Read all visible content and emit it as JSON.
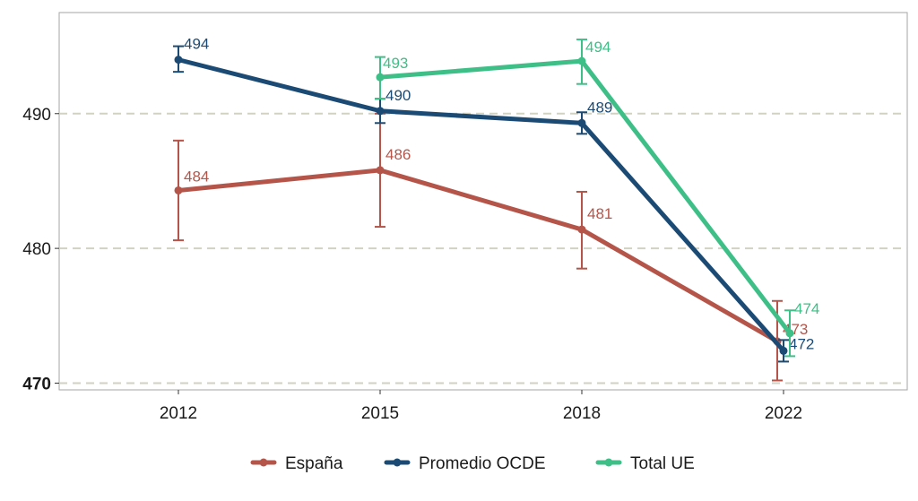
{
  "chart_data": {
    "type": "line",
    "x": [
      "2012",
      "2015",
      "2018",
      "2022"
    ],
    "ylim": [
      469.5,
      497.5
    ],
    "y_ticks": [
      {
        "value": 470,
        "label": "470",
        "bold": true
      },
      {
        "value": 480,
        "label": "480",
        "bold": false
      },
      {
        "value": 490,
        "label": "490",
        "bold": false
      }
    ],
    "grid": "horizontal dashed",
    "legend_position": "bottom",
    "series": [
      {
        "name": "España",
        "color": "#b5554a",
        "points": [
          {
            "x": "2012",
            "y": 484.3,
            "err_low": 480.6,
            "err_high": 488.0,
            "label": "484"
          },
          {
            "x": "2015",
            "y": 485.8,
            "err_low": 481.6,
            "err_high": 490.0,
            "label": "486"
          },
          {
            "x": "2018",
            "y": 481.4,
            "err_low": 478.5,
            "err_high": 484.2,
            "label": "481"
          },
          {
            "x": "2022",
            "y": 473.1,
            "err_low": 470.2,
            "err_high": 476.1,
            "label": "473"
          }
        ]
      },
      {
        "name": "Promedio OCDE",
        "color": "#1b4b74",
        "points": [
          {
            "x": "2012",
            "y": 494.0,
            "err_low": 493.1,
            "err_high": 495.0,
            "label": "494"
          },
          {
            "x": "2015",
            "y": 490.2,
            "err_low": 489.3,
            "err_high": 491.1,
            "label": "490"
          },
          {
            "x": "2018",
            "y": 489.3,
            "err_low": 488.5,
            "err_high": 490.1,
            "label": "489"
          },
          {
            "x": "2022",
            "y": 472.4,
            "err_low": 471.6,
            "err_high": 473.2,
            "label": "472"
          }
        ]
      },
      {
        "name": "Total UE",
        "color": "#3ebf87",
        "points": [
          {
            "x": "2015",
            "y": 492.7,
            "err_low": 491.1,
            "err_high": 494.2,
            "label": "493"
          },
          {
            "x": "2018",
            "y": 493.9,
            "err_low": 492.2,
            "err_high": 495.5,
            "label": "494"
          },
          {
            "x": "2022",
            "y": 473.7,
            "err_low": 472.0,
            "err_high": 475.4,
            "label": "474"
          }
        ]
      }
    ]
  }
}
